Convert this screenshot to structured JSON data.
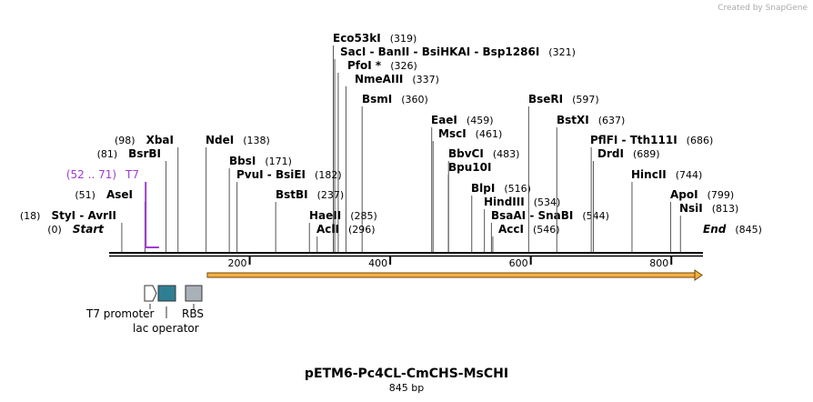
{
  "header": {
    "credit": "Created by SnapGene"
  },
  "map": {
    "sites": [
      {
        "name": "Eco53kI",
        "position": "(319)"
      },
      {
        "name": "SacI  -  BanII  -  BsiHKAI  -  Bsp1286I",
        "position": "(321)"
      },
      {
        "name": "PfoI *",
        "position": "(326)"
      },
      {
        "name": "NmeAIII",
        "position": "(337)"
      },
      {
        "name": "BsmI",
        "position": "(360)"
      },
      {
        "name": "EaeI",
        "position": "(459)"
      },
      {
        "name": "MscI",
        "position": "(461)"
      },
      {
        "name": "BbvCI",
        "position": "(483)"
      },
      {
        "name": "Bpu10I"
      },
      {
        "name": "BlpI",
        "position": "(516)"
      },
      {
        "name": "HindIII",
        "position": "(534)"
      },
      {
        "name": "BsaAI  -  SnaBI",
        "position": "(544)"
      },
      {
        "name": "AccI",
        "position": "(546)"
      },
      {
        "name": "BseRI",
        "position": "(597)"
      },
      {
        "name": "BstXI",
        "position": "(637)"
      },
      {
        "name": "PflFI  -  Tth111I",
        "position": "(686)"
      },
      {
        "name": "DrdI",
        "position": "(689)"
      },
      {
        "name": "HincII",
        "position": "(744)"
      },
      {
        "name": "ApoI",
        "position": "(799)"
      },
      {
        "name": "NsiI",
        "position": "(813)"
      },
      {
        "name": "End",
        "position": "(845)"
      },
      {
        "name": "NdeI",
        "position": "(138)"
      },
      {
        "name": "BbsI",
        "position": "(171)"
      },
      {
        "name": "PvuI  -  BsiEI",
        "position": "(182)"
      },
      {
        "name": "BstBI",
        "position": "(237)"
      },
      {
        "name": "HaeII",
        "position": "(285)"
      },
      {
        "name": "AclI",
        "position": "(296)"
      },
      {
        "name": "XbaI",
        "position": "(98)"
      },
      {
        "name": "BsrBI",
        "position": "(81)"
      },
      {
        "name": "AseI",
        "position": "(51)"
      },
      {
        "name": "StyI  -  AvrII",
        "position": "(18)"
      },
      {
        "name": "Start",
        "position": "(0)"
      }
    ],
    "feature": {
      "label": "T7",
      "range": "(52 .. 71)"
    },
    "ruler": [
      200,
      400,
      600,
      800
    ],
    "legend": [
      "T7 promoter",
      "lac operator",
      "RBS"
    ],
    "title": "pETM6-Pc4CL-CmCHS-MsCHI",
    "length": "845 bp"
  }
}
